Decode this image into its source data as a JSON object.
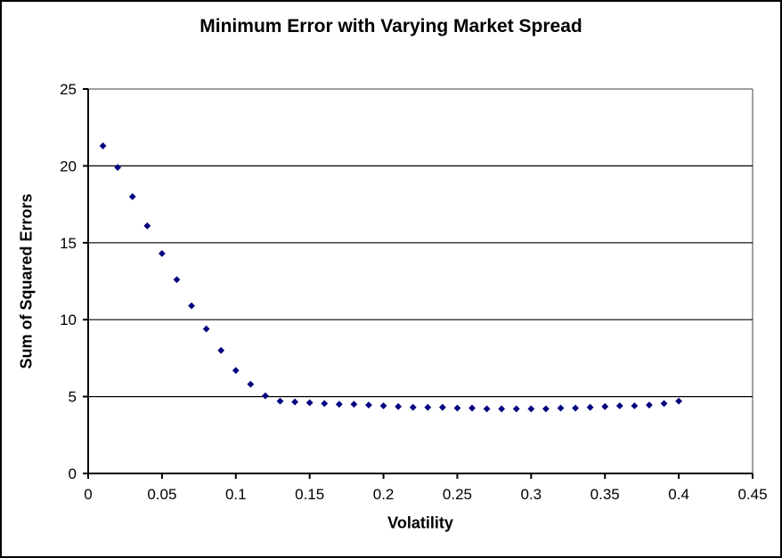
{
  "chart_data": {
    "type": "scatter",
    "title": "Minimum Error with Varying Market Spread",
    "xlabel": "Volatility",
    "ylabel": "Sum of Squared Errors",
    "xlim": [
      0,
      0.45
    ],
    "ylim": [
      0,
      25
    ],
    "x_ticks": [
      0,
      0.05,
      0.1,
      0.15,
      0.2,
      0.25,
      0.3,
      0.35,
      0.4,
      0.45
    ],
    "x_tick_labels": [
      "0",
      "0.05",
      "0.1",
      "0.15",
      "0.2",
      "0.25",
      "0.3",
      "0.35",
      "0.4",
      "0.45"
    ],
    "y_ticks": [
      0,
      5,
      10,
      15,
      20,
      25
    ],
    "y_tick_labels": [
      "0",
      "5",
      "10",
      "15",
      "20",
      "25"
    ],
    "grid": true,
    "legend": "none",
    "series": [
      {
        "marker": "diamond",
        "color": "#000080",
        "x": [
          0.01,
          0.02,
          0.03,
          0.04,
          0.05,
          0.06,
          0.07,
          0.08,
          0.09,
          0.1,
          0.11,
          0.12,
          0.13,
          0.14,
          0.15,
          0.16,
          0.17,
          0.18,
          0.19,
          0.2,
          0.21,
          0.22,
          0.23,
          0.24,
          0.25,
          0.26,
          0.27,
          0.28,
          0.29,
          0.3,
          0.31,
          0.32,
          0.33,
          0.34,
          0.35,
          0.36,
          0.37,
          0.38,
          0.39,
          0.4
        ],
        "y": [
          21.3,
          19.9,
          18.0,
          16.1,
          14.3,
          12.6,
          10.9,
          9.4,
          8.0,
          6.7,
          5.8,
          5.05,
          4.7,
          4.65,
          4.6,
          4.55,
          4.5,
          4.5,
          4.45,
          4.4,
          4.35,
          4.3,
          4.3,
          4.3,
          4.25,
          4.25,
          4.2,
          4.2,
          4.2,
          4.2,
          4.2,
          4.25,
          4.25,
          4.3,
          4.35,
          4.4,
          4.4,
          4.45,
          4.55,
          4.7
        ]
      }
    ],
    "colors": {
      "marker": "#000080",
      "gridline": "#000000",
      "axis": "#000000",
      "plot_border": "#808080",
      "background": "#ffffff",
      "text": "#000000"
    }
  }
}
